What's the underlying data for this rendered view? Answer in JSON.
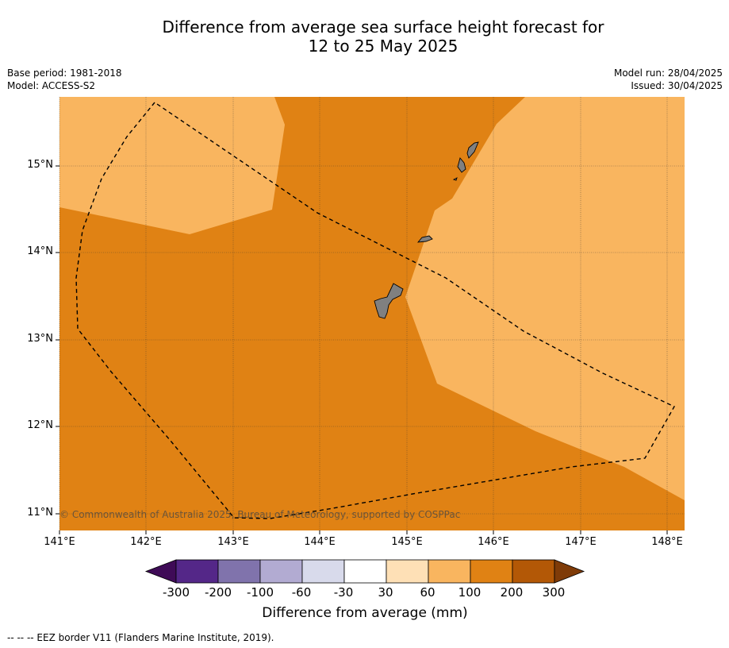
{
  "title_line1": "Difference from average sea surface height forecast for",
  "title_line2": "12 to 25 May 2025",
  "meta_left": [
    "Base period: 1981-2018",
    "Model: ACCESS-S2"
  ],
  "meta_right": [
    "Model run: 28/04/2025",
    "Issued: 30/04/2025"
  ],
  "map": {
    "lon_range": [
      141.0,
      148.2
    ],
    "lat_range": [
      10.8,
      15.8
    ],
    "lat_ticks": [
      {
        "value": 15,
        "label": "15°N"
      },
      {
        "value": 14,
        "label": "14°N"
      },
      {
        "value": 13,
        "label": "13°N"
      },
      {
        "value": 12,
        "label": "12°N"
      },
      {
        "value": 11,
        "label": "11°N"
      }
    ],
    "lon_ticks": [
      {
        "value": 141,
        "label": "141°E"
      },
      {
        "value": 142,
        "label": "142°E"
      },
      {
        "value": 143,
        "label": "143°E"
      },
      {
        "value": 144,
        "label": "144°E"
      },
      {
        "value": 145,
        "label": "145°E"
      },
      {
        "value": 146,
        "label": "146°E"
      },
      {
        "value": 147,
        "label": "147°E"
      },
      {
        "value": 148,
        "label": "148°E"
      }
    ],
    "background_category": "100 to 200 mm",
    "copyright": "© Commonwealth of Australia 2025, Bureau of Meteorology, supported by COSPPac",
    "colors": {
      "land": "#808080",
      "cat_60_100": "#f9b55f",
      "cat_100_200": "#e08214"
    }
  },
  "colorbar": {
    "title": "Difference from average (mm)",
    "labels": [
      "-300",
      "-200",
      "-100",
      "-60",
      "-30",
      "30",
      "60",
      "100",
      "200",
      "300"
    ],
    "colors": [
      "#3f0b57",
      "#542788",
      "#8073ac",
      "#b2abd2",
      "#d8daeb",
      "#ffffff",
      "#fee0b6",
      "#f9b55f",
      "#e08214",
      "#b35806",
      "#7f3b08"
    ]
  },
  "footnote": "--  --  -- EEZ border V11 (Flanders Marine Institute, 2019)."
}
